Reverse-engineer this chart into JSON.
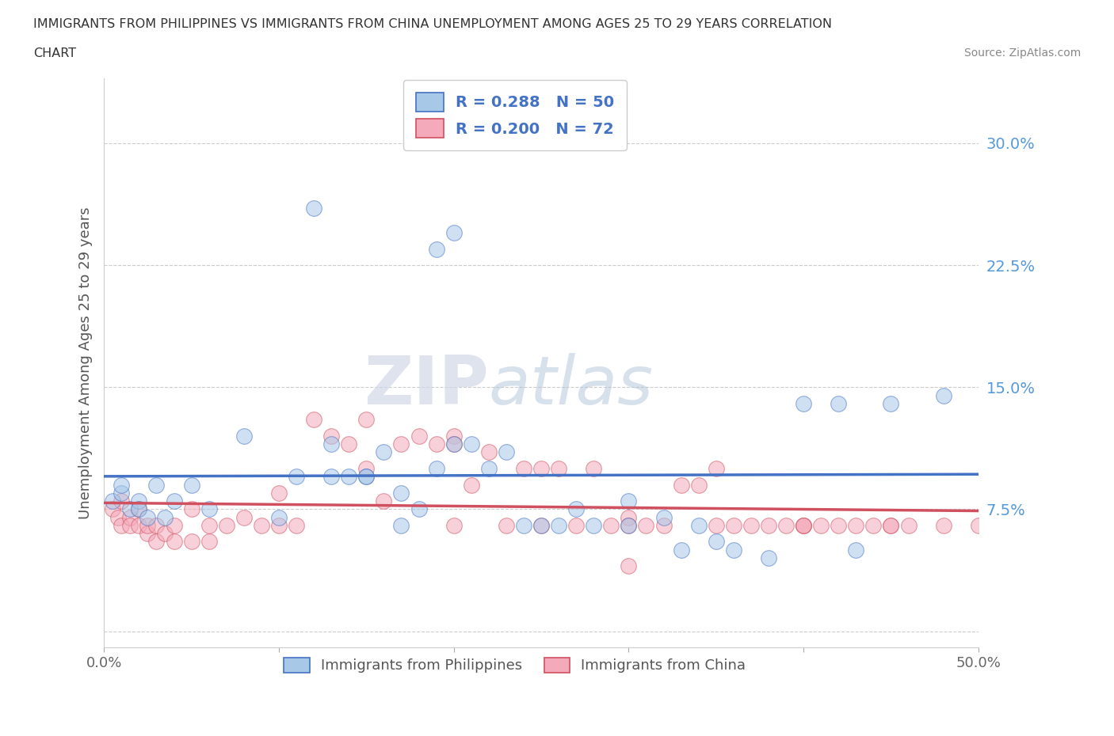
{
  "title_line1": "IMMIGRANTS FROM PHILIPPINES VS IMMIGRANTS FROM CHINA UNEMPLOYMENT AMONG AGES 25 TO 29 YEARS CORRELATION",
  "title_line2": "CHART",
  "source": "Source: ZipAtlas.com",
  "ylabel": "Unemployment Among Ages 25 to 29 years",
  "xlim": [
    0.0,
    0.5
  ],
  "ylim": [
    -0.01,
    0.34
  ],
  "yticks": [
    0.0,
    0.075,
    0.15,
    0.225,
    0.3
  ],
  "ytick_labels": [
    "",
    "7.5%",
    "15.0%",
    "22.5%",
    "30.0%"
  ],
  "xticks": [
    0.0,
    0.1,
    0.2,
    0.3,
    0.4,
    0.5
  ],
  "xtick_labels": [
    "0.0%",
    "",
    "",
    "",
    "",
    "50.0%"
  ],
  "legend_r1": "R = 0.288",
  "legend_n1": "N = 50",
  "legend_r2": "R = 0.200",
  "legend_n2": "N = 72",
  "label1": "Immigrants from Philippines",
  "label2": "Immigrants from China",
  "color1": "#a8c8e8",
  "color2": "#f4aaba",
  "line_color1": "#4472c4",
  "line_color2": "#d05060",
  "watermark_zip": "ZIP",
  "watermark_atlas": "atlas",
  "philippines_x": [
    0.005,
    0.01,
    0.01,
    0.015,
    0.02,
    0.02,
    0.025,
    0.03,
    0.035,
    0.04,
    0.05,
    0.06,
    0.08,
    0.1,
    0.12,
    0.13,
    0.14,
    0.15,
    0.16,
    0.17,
    0.18,
    0.19,
    0.19,
    0.2,
    0.21,
    0.22,
    0.24,
    0.25,
    0.27,
    0.28,
    0.3,
    0.32,
    0.33,
    0.35,
    0.36,
    0.38,
    0.4,
    0.43,
    0.45,
    0.48,
    0.11,
    0.13,
    0.15,
    0.17,
    0.2,
    0.23,
    0.26,
    0.3,
    0.34,
    0.42
  ],
  "philippines_y": [
    0.08,
    0.085,
    0.09,
    0.075,
    0.08,
    0.075,
    0.07,
    0.09,
    0.07,
    0.08,
    0.09,
    0.075,
    0.12,
    0.07,
    0.26,
    0.115,
    0.095,
    0.095,
    0.11,
    0.085,
    0.075,
    0.235,
    0.1,
    0.245,
    0.115,
    0.1,
    0.065,
    0.065,
    0.075,
    0.065,
    0.065,
    0.07,
    0.05,
    0.055,
    0.05,
    0.045,
    0.14,
    0.05,
    0.14,
    0.145,
    0.095,
    0.095,
    0.095,
    0.065,
    0.115,
    0.11,
    0.065,
    0.08,
    0.065,
    0.14
  ],
  "china_x": [
    0.005,
    0.008,
    0.01,
    0.01,
    0.015,
    0.015,
    0.02,
    0.02,
    0.025,
    0.025,
    0.03,
    0.03,
    0.035,
    0.04,
    0.04,
    0.05,
    0.05,
    0.06,
    0.06,
    0.07,
    0.08,
    0.09,
    0.1,
    0.11,
    0.12,
    0.13,
    0.14,
    0.15,
    0.16,
    0.17,
    0.18,
    0.19,
    0.2,
    0.21,
    0.22,
    0.23,
    0.24,
    0.25,
    0.26,
    0.27,
    0.28,
    0.29,
    0.3,
    0.31,
    0.32,
    0.33,
    0.34,
    0.35,
    0.36,
    0.37,
    0.38,
    0.39,
    0.4,
    0.41,
    0.42,
    0.43,
    0.44,
    0.45,
    0.46,
    0.48,
    0.15,
    0.2,
    0.25,
    0.3,
    0.35,
    0.4,
    0.45,
    0.1,
    0.2,
    0.3,
    0.4,
    0.5
  ],
  "china_y": [
    0.075,
    0.07,
    0.08,
    0.065,
    0.07,
    0.065,
    0.075,
    0.065,
    0.06,
    0.065,
    0.065,
    0.055,
    0.06,
    0.065,
    0.055,
    0.075,
    0.055,
    0.065,
    0.055,
    0.065,
    0.07,
    0.065,
    0.085,
    0.065,
    0.13,
    0.12,
    0.115,
    0.13,
    0.08,
    0.115,
    0.12,
    0.115,
    0.12,
    0.09,
    0.11,
    0.065,
    0.1,
    0.065,
    0.1,
    0.065,
    0.1,
    0.065,
    0.07,
    0.065,
    0.065,
    0.09,
    0.09,
    0.065,
    0.065,
    0.065,
    0.065,
    0.065,
    0.065,
    0.065,
    0.065,
    0.065,
    0.065,
    0.065,
    0.065,
    0.065,
    0.1,
    0.115,
    0.1,
    0.065,
    0.1,
    0.065,
    0.065,
    0.065,
    0.065,
    0.04,
    0.065,
    0.065
  ]
}
